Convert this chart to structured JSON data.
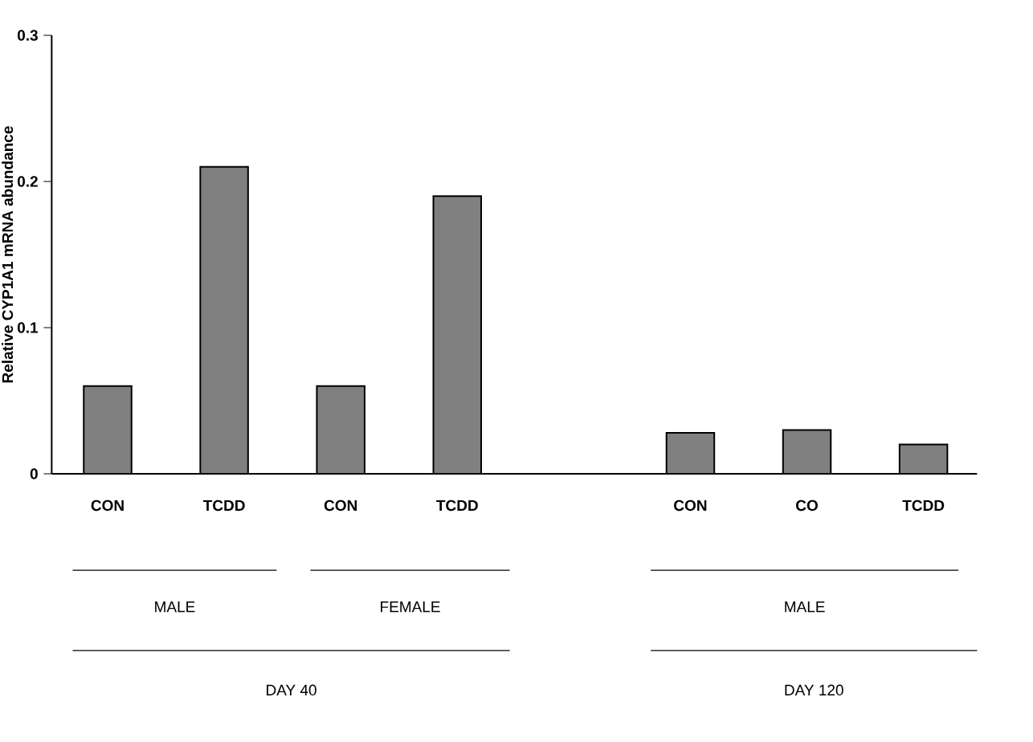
{
  "chart_data": {
    "type": "bar",
    "ylabel": "Relative CYP1A1 mRNA abundance",
    "categories": [
      "CON",
      "TCDD",
      "CON",
      "TCDD",
      null,
      "CON",
      "CO",
      "TCDD"
    ],
    "values": [
      0.06,
      0.21,
      0.06,
      0.19,
      null,
      0.028,
      0.03,
      0.02
    ],
    "color": "#808080",
    "ylim": [
      0,
      0.3
    ],
    "yticks": [
      0,
      0.1,
      0.2,
      0.3
    ],
    "annotations": [
      "MALE",
      "FEMALE",
      "DAY 40",
      "MALE",
      "DAY 120"
    ]
  }
}
